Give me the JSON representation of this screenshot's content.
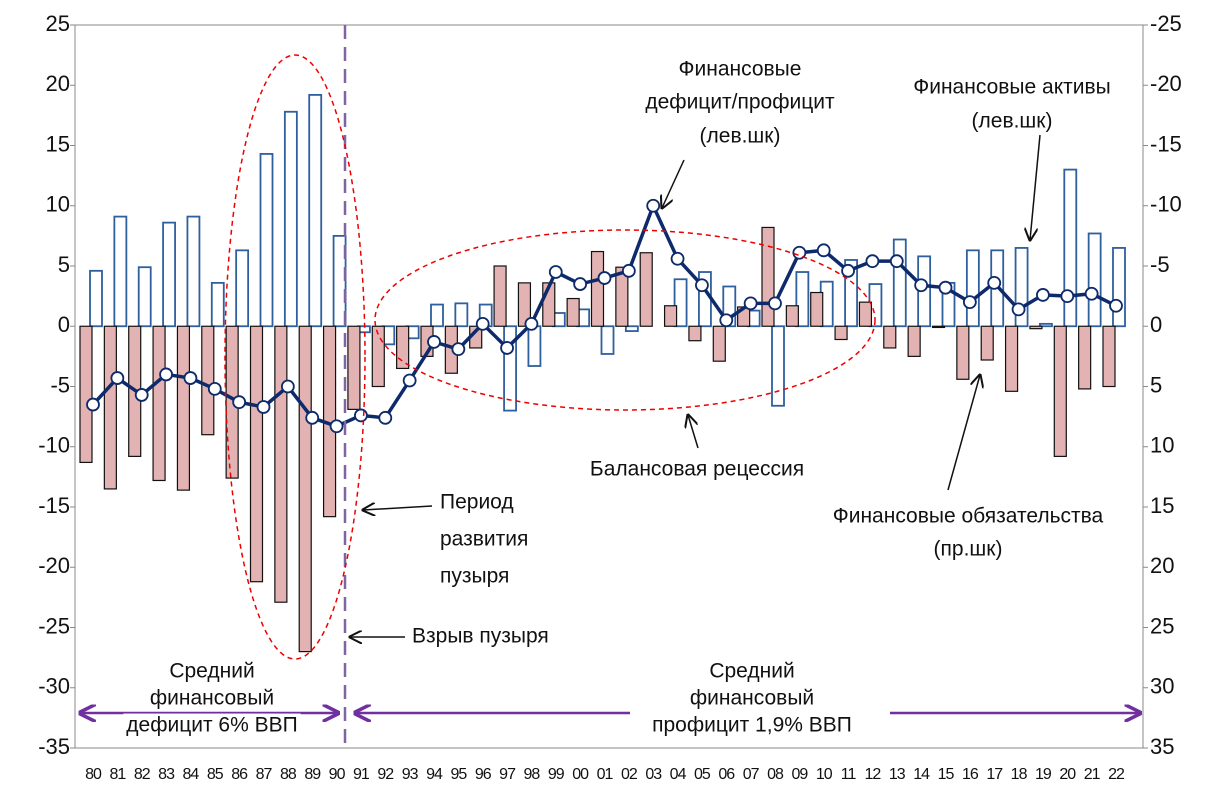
{
  "chart_data": {
    "type": "bar_line",
    "categories": [
      "80",
      "81",
      "82",
      "83",
      "84",
      "85",
      "86",
      "87",
      "88",
      "89",
      "90",
      "91",
      "92",
      "93",
      "94",
      "95",
      "96",
      "97",
      "98",
      "99",
      "00",
      "01",
      "02",
      "03",
      "04",
      "05",
      "06",
      "07",
      "08",
      "09",
      "10",
      "11",
      "12",
      "13",
      "14",
      "15",
      "16",
      "17",
      "18",
      "19",
      "20",
      "21",
      "22"
    ],
    "ylim": [
      -35,
      25
    ],
    "yticks": [
      25,
      20,
      15,
      10,
      5,
      0,
      -5,
      -10,
      -15,
      -20,
      -25,
      -30,
      -35
    ],
    "y2lim": [
      35,
      -25
    ],
    "y2ticks": [
      -25,
      -20,
      -15,
      -10,
      -5,
      0,
      5,
      10,
      15,
      20,
      25,
      30,
      35
    ],
    "series": [
      {
        "kind": "bar",
        "color": "#2e5f9e",
        "values": [
          4.6,
          9.1,
          4.9,
          8.6,
          9.1,
          3.6,
          6.3,
          14.3,
          17.8,
          19.2,
          7.5,
          -0.5,
          -1.5,
          -1,
          1.8,
          1.9,
          1.8,
          -7,
          -3.3,
          1.1,
          1.4,
          -2.3,
          -0.4,
          0,
          3.9,
          4.5,
          3.3,
          1.3,
          -6.6,
          4.5,
          3.7,
          5.5,
          3.5,
          7.2,
          5.8,
          3.6,
          6.3,
          6.3,
          6.5,
          0.2,
          13,
          7.7,
          6.5
        ]
      },
      {
        "kind": "bar",
        "axis": "y2",
        "color": "#e3b2b2",
        "values": [
          11.3,
          13.5,
          10.8,
          12.8,
          13.6,
          9,
          12.6,
          21.2,
          22.9,
          27,
          15.8,
          6.9,
          5,
          3.5,
          2.5,
          3.9,
          1.8,
          -5,
          -3.6,
          -3.6,
          -2.3,
          -6.2,
          -4.9,
          -6.1,
          -1.7,
          1.2,
          2.9,
          -1.6,
          -8.2,
          -1.7,
          -2.8,
          1.1,
          -2,
          1.8,
          2.5,
          0.1,
          4.4,
          2.8,
          5.4,
          0.2,
          10.8,
          5.2,
          5
        ]
      },
      {
        "kind": "line",
        "color": "#0d2a6b",
        "values": [
          -6.5,
          -4.3,
          -5.7,
          -4,
          -4.3,
          -5.2,
          -6.3,
          -6.7,
          -5,
          -7.6,
          -8.3,
          -7.4,
          -7.6,
          -4.5,
          -1.3,
          -1.9,
          0.2,
          -1.8,
          0.2,
          4.5,
          3.5,
          4,
          4.6,
          10,
          5.6,
          3.4,
          0.5,
          1.9,
          1.9,
          6.1,
          6.3,
          4.6,
          5.4,
          5.4,
          3.4,
          3.2,
          2,
          3.6,
          1.4,
          2.6,
          2.5,
          2.7,
          1.7
        ]
      }
    ],
    "annotations": [
      {
        "lines": [
          "Финансовые",
          "дефицит/профицит",
          "(лев.шк)"
        ]
      },
      {
        "lines": [
          "Финансовые активы",
          "(лев.шк)"
        ]
      },
      {
        "lines": [
          "Балансовая рецессия"
        ]
      },
      {
        "lines": [
          "Период",
          "развития",
          "пузыря"
        ]
      },
      {
        "lines": [
          "Взрыв пузыря"
        ]
      },
      {
        "lines": [
          "Финансовые обязательства",
          "(пр.шк)"
        ]
      },
      {
        "lines": [
          "Средний",
          "финансовый",
          "дефицит 6% ВВП"
        ]
      },
      {
        "lines": [
          "Средний",
          "финансовый",
          "профицит 1,9% ВВП"
        ]
      }
    ]
  }
}
